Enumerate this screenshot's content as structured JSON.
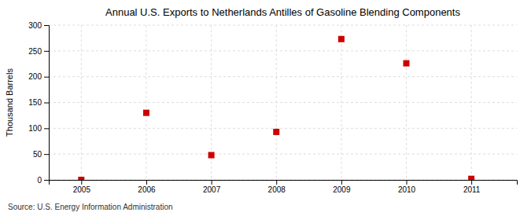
{
  "chart_data": {
    "type": "scatter",
    "title": "Annual U.S. Exports to Netherlands Antilles of Gasoline Blending Components",
    "ylabel": "Thousand Barrels",
    "source": "Source: U.S. Energy Information Administration",
    "x": [
      2005,
      2006,
      2007,
      2008,
      2009,
      2010,
      2011
    ],
    "values": [
      0,
      130,
      48,
      93,
      273,
      226,
      2
    ],
    "color": "#cc0000",
    "marker": "square",
    "xlim": [
      2004.5,
      2011.7
    ],
    "xticks": [
      2005,
      2006,
      2007,
      2008,
      2009,
      2010,
      2011
    ],
    "ylim": [
      0,
      300
    ],
    "yticks": [
      0,
      50,
      100,
      150,
      200,
      250,
      300
    ],
    "grid": true
  }
}
